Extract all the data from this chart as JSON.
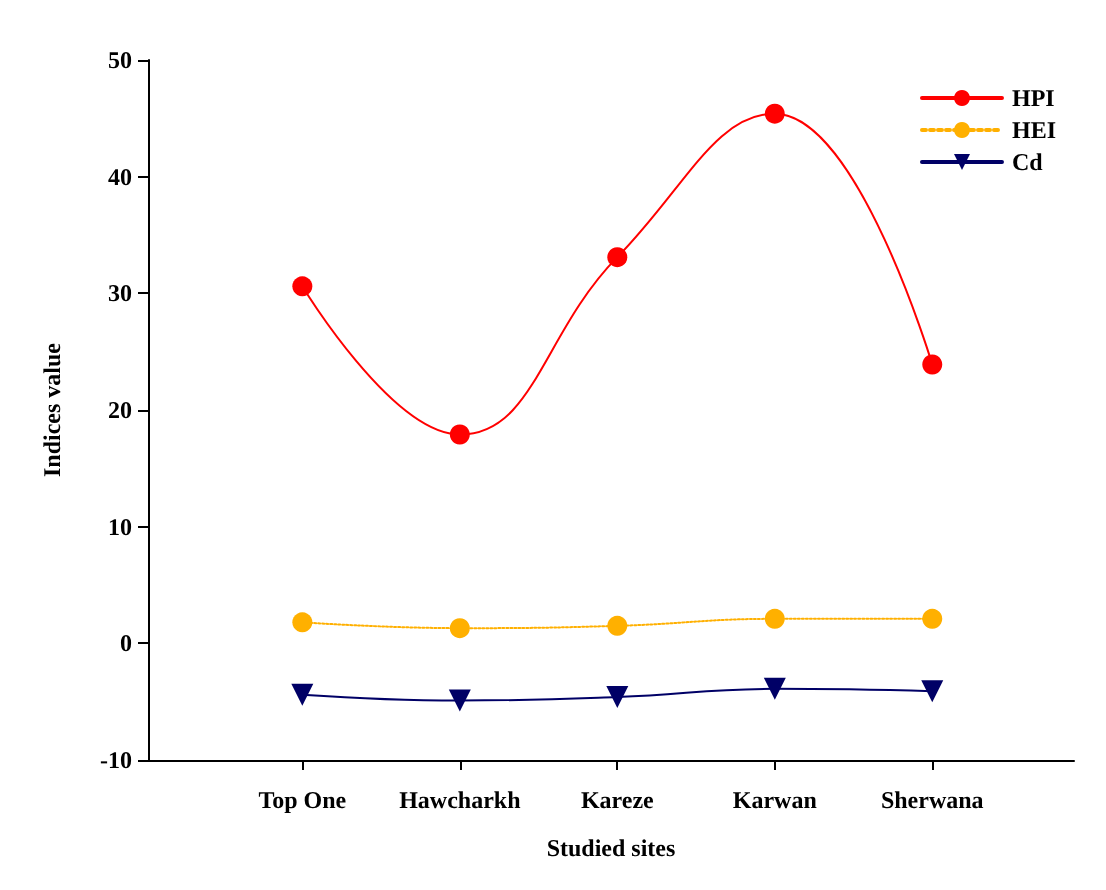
{
  "chart_data": {
    "type": "line",
    "xlabel": "Studied sites",
    "ylabel": "Indices value",
    "categories": [
      "Top One",
      "Hawcharkh",
      "Kareze",
      "Karwan",
      "Sherwana"
    ],
    "series": [
      {
        "name": "HPI",
        "color": "#ff0000",
        "marker": "circle",
        "line_style": "solid",
        "values": [
          30.6,
          17.9,
          33.1,
          45.4,
          23.9
        ]
      },
      {
        "name": "HEI",
        "color": "#ffb000",
        "marker": "circle",
        "line_style": "dotted",
        "values": [
          1.8,
          1.3,
          1.5,
          2.1,
          2.1
        ]
      },
      {
        "name": "Cd",
        "color": "#000066",
        "marker": "triangle-down",
        "line_style": "solid",
        "values": [
          -4.4,
          -4.9,
          -4.6,
          -3.9,
          -4.1
        ]
      }
    ],
    "ylim": [
      -10,
      50
    ],
    "yticks": [
      -10,
      0,
      10,
      20,
      30,
      40,
      50
    ],
    "grid": false,
    "legend": "top right"
  }
}
